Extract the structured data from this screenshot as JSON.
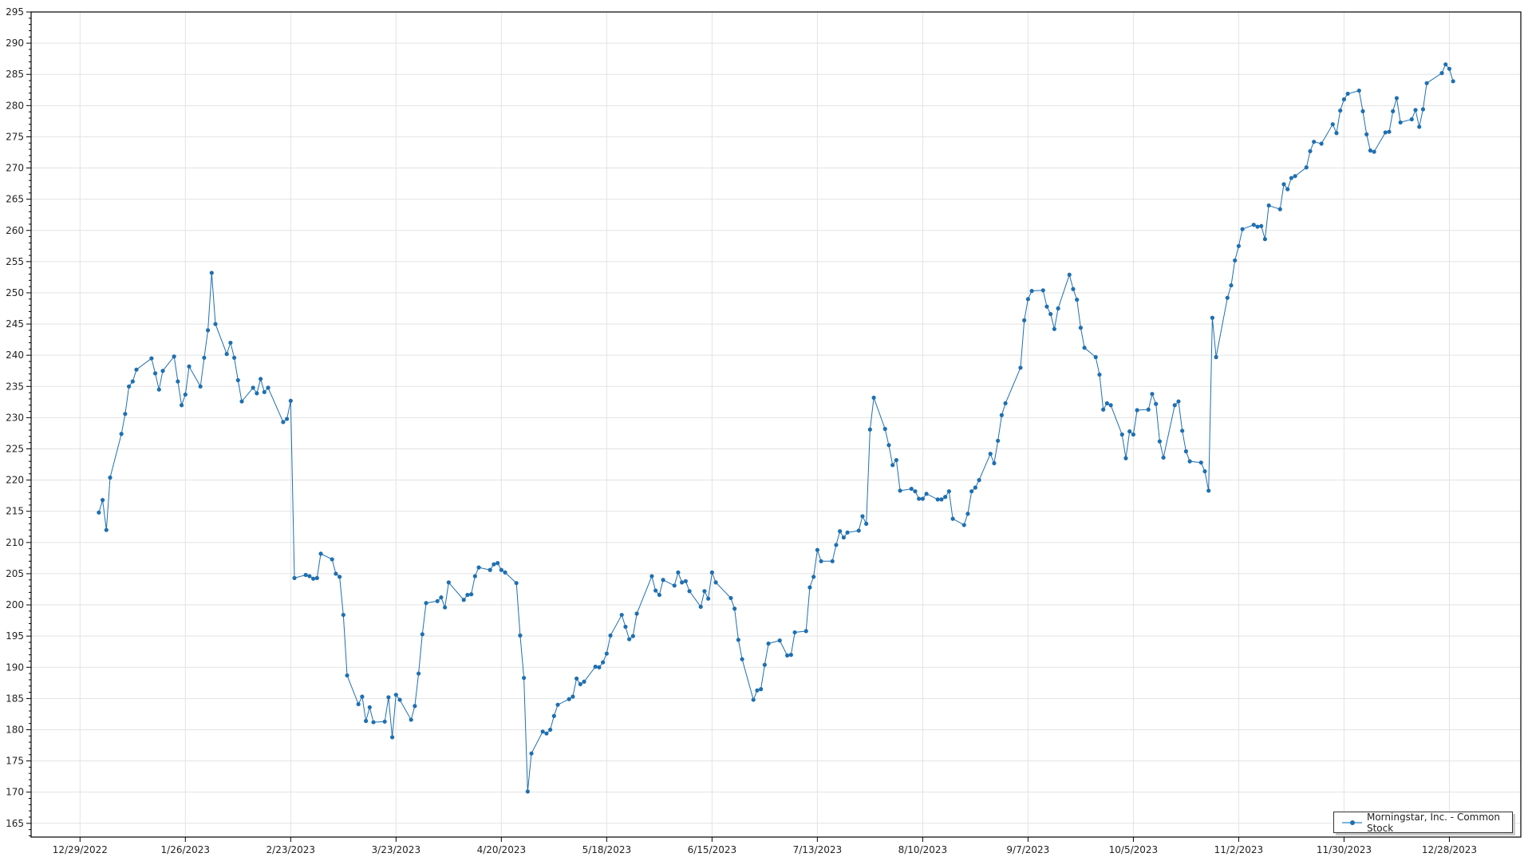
{
  "chart_data": {
    "type": "line",
    "title": "",
    "xlabel": "",
    "ylabel": "",
    "ylim": [
      162.8,
      295
    ],
    "xlim": [
      "2022-12-16",
      "2024-01-16"
    ],
    "grid": true,
    "legend_position": "bottom-right",
    "y_ticks": [
      165,
      170,
      175,
      180,
      185,
      190,
      195,
      200,
      205,
      210,
      215,
      220,
      225,
      230,
      235,
      240,
      245,
      250,
      255,
      260,
      265,
      270,
      275,
      280,
      285,
      290,
      295
    ],
    "x_ticks": [
      "2022-12-29",
      "2023-01-26",
      "2023-02-23",
      "2023-03-23",
      "2023-04-20",
      "2023-05-18",
      "2023-06-15",
      "2023-07-13",
      "2023-08-10",
      "2023-09-07",
      "2023-10-05",
      "2023-11-02",
      "2023-11-30",
      "2023-12-28"
    ],
    "x_tick_labels": [
      "12/29/2022",
      "1/26/2023",
      "2/23/2023",
      "3/23/2023",
      "4/20/2023",
      "5/18/2023",
      "6/15/2023",
      "7/13/2023",
      "8/10/2023",
      "9/7/2023",
      "10/5/2023",
      "11/2/2023",
      "11/30/2023",
      "12/28/2023"
    ],
    "series": [
      {
        "name": "Morningstar, Inc. - Common Stock",
        "color": "#1f6fb0",
        "points": [
          [
            "2023-01-03",
            214.8
          ],
          [
            "2023-01-04",
            216.8
          ],
          [
            "2023-01-05",
            212
          ],
          [
            "2023-01-06",
            220.4
          ],
          [
            "2023-01-09",
            227.4
          ],
          [
            "2023-01-10",
            230.6
          ],
          [
            "2023-01-11",
            235
          ],
          [
            "2023-01-12",
            235.8
          ],
          [
            "2023-01-13",
            237.7
          ],
          [
            "2023-01-17",
            239.5
          ],
          [
            "2023-01-18",
            237.1
          ],
          [
            "2023-01-19",
            234.5
          ],
          [
            "2023-01-20",
            237.5
          ],
          [
            "2023-01-23",
            239.8
          ],
          [
            "2023-01-24",
            235.8
          ],
          [
            "2023-01-25",
            232
          ],
          [
            "2023-01-26",
            233.7
          ],
          [
            "2023-01-27",
            238.2
          ],
          [
            "2023-01-30",
            235
          ],
          [
            "2023-01-31",
            239.6
          ],
          [
            "2023-02-01",
            244
          ],
          [
            "2023-02-02",
            253.2
          ],
          [
            "2023-02-03",
            245
          ],
          [
            "2023-02-06",
            240.2
          ],
          [
            "2023-02-07",
            242
          ],
          [
            "2023-02-08",
            239.6
          ],
          [
            "2023-02-09",
            236
          ],
          [
            "2023-02-10",
            232.6
          ],
          [
            "2023-02-13",
            234.8
          ],
          [
            "2023-02-14",
            233.9
          ],
          [
            "2023-02-15",
            236.2
          ],
          [
            "2023-02-16",
            234.1
          ],
          [
            "2023-02-17",
            234.8
          ],
          [
            "2023-02-21",
            229.3
          ],
          [
            "2023-02-22",
            229.8
          ],
          [
            "2023-02-23",
            232.7
          ],
          [
            "2023-02-24",
            204.3
          ],
          [
            "2023-02-27",
            204.8
          ],
          [
            "2023-02-28",
            204.6
          ],
          [
            "2023-03-01",
            204.2
          ],
          [
            "2023-03-02",
            204.3
          ],
          [
            "2023-03-03",
            208.2
          ],
          [
            "2023-03-06",
            207.3
          ],
          [
            "2023-03-07",
            205
          ],
          [
            "2023-03-08",
            204.5
          ],
          [
            "2023-03-09",
            198.4
          ],
          [
            "2023-03-10",
            188.7
          ],
          [
            "2023-03-13",
            184.1
          ],
          [
            "2023-03-14",
            185.3
          ],
          [
            "2023-03-15",
            181.4
          ],
          [
            "2023-03-16",
            183.6
          ],
          [
            "2023-03-17",
            181.2
          ],
          [
            "2023-03-20",
            181.3
          ],
          [
            "2023-03-21",
            185.2
          ],
          [
            "2023-03-22",
            178.8
          ],
          [
            "2023-03-23",
            185.6
          ],
          [
            "2023-03-24",
            184.8
          ],
          [
            "2023-03-27",
            181.6
          ],
          [
            "2023-03-28",
            183.8
          ],
          [
            "2023-03-29",
            189
          ],
          [
            "2023-03-30",
            195.3
          ],
          [
            "2023-03-31",
            200.3
          ],
          [
            "2023-04-03",
            200.6
          ],
          [
            "2023-04-04",
            201.2
          ],
          [
            "2023-04-05",
            199.6
          ],
          [
            "2023-04-06",
            203.6
          ],
          [
            "2023-04-10",
            200.8
          ],
          [
            "2023-04-11",
            201.6
          ],
          [
            "2023-04-12",
            201.7
          ],
          [
            "2023-04-13",
            204.6
          ],
          [
            "2023-04-14",
            206
          ],
          [
            "2023-04-17",
            205.6
          ],
          [
            "2023-04-18",
            206.5
          ],
          [
            "2023-04-19",
            206.7
          ],
          [
            "2023-04-20",
            205.6
          ],
          [
            "2023-04-21",
            205.2
          ],
          [
            "2023-04-24",
            203.5
          ],
          [
            "2023-04-25",
            195.1
          ],
          [
            "2023-04-26",
            188.3
          ],
          [
            "2023-04-27",
            170.1
          ],
          [
            "2023-04-28",
            176.2
          ],
          [
            "2023-05-01",
            179.7
          ],
          [
            "2023-05-02",
            179.4
          ],
          [
            "2023-05-03",
            180
          ],
          [
            "2023-05-04",
            182.2
          ],
          [
            "2023-05-05",
            184
          ],
          [
            "2023-05-08",
            184.9
          ],
          [
            "2023-05-09",
            185.3
          ],
          [
            "2023-05-10",
            188.2
          ],
          [
            "2023-05-11",
            187.3
          ],
          [
            "2023-05-12",
            187.7
          ],
          [
            "2023-05-15",
            190.1
          ],
          [
            "2023-05-16",
            190
          ],
          [
            "2023-05-17",
            190.8
          ],
          [
            "2023-05-18",
            192.2
          ],
          [
            "2023-05-19",
            195.1
          ],
          [
            "2023-05-22",
            198.4
          ],
          [
            "2023-05-23",
            196.5
          ],
          [
            "2023-05-24",
            194.5
          ],
          [
            "2023-05-25",
            195
          ],
          [
            "2023-05-26",
            198.6
          ],
          [
            "2023-05-30",
            204.6
          ],
          [
            "2023-05-31",
            202.3
          ],
          [
            "2023-06-01",
            201.6
          ],
          [
            "2023-06-02",
            204
          ],
          [
            "2023-06-05",
            203.1
          ],
          [
            "2023-06-06",
            205.2
          ],
          [
            "2023-06-07",
            203.6
          ],
          [
            "2023-06-08",
            203.8
          ],
          [
            "2023-06-09",
            202.2
          ],
          [
            "2023-06-12",
            199.7
          ],
          [
            "2023-06-13",
            202.2
          ],
          [
            "2023-06-14",
            201
          ],
          [
            "2023-06-15",
            205.2
          ],
          [
            "2023-06-16",
            203.6
          ],
          [
            "2023-06-20",
            201.1
          ],
          [
            "2023-06-21",
            199.4
          ],
          [
            "2023-06-22",
            194.4
          ],
          [
            "2023-06-23",
            191.3
          ],
          [
            "2023-06-26",
            184.8
          ],
          [
            "2023-06-27",
            186.3
          ],
          [
            "2023-06-28",
            186.5
          ],
          [
            "2023-06-29",
            190.4
          ],
          [
            "2023-06-30",
            193.8
          ],
          [
            "2023-07-03",
            194.3
          ],
          [
            "2023-07-05",
            191.9
          ],
          [
            "2023-07-06",
            192
          ],
          [
            "2023-07-07",
            195.6
          ],
          [
            "2023-07-10",
            195.8
          ],
          [
            "2023-07-11",
            202.8
          ],
          [
            "2023-07-12",
            204.5
          ],
          [
            "2023-07-13",
            208.8
          ],
          [
            "2023-07-14",
            207
          ],
          [
            "2023-07-17",
            207
          ],
          [
            "2023-07-18",
            209.6
          ],
          [
            "2023-07-19",
            211.8
          ],
          [
            "2023-07-20",
            210.8
          ],
          [
            "2023-07-21",
            211.6
          ],
          [
            "2023-07-24",
            211.9
          ],
          [
            "2023-07-25",
            214.2
          ],
          [
            "2023-07-26",
            213
          ],
          [
            "2023-07-27",
            228.1
          ],
          [
            "2023-07-28",
            233.2
          ],
          [
            "2023-07-31",
            228.2
          ],
          [
            "2023-08-01",
            225.6
          ],
          [
            "2023-08-02",
            222.4
          ],
          [
            "2023-08-03",
            223.2
          ],
          [
            "2023-08-04",
            218.3
          ],
          [
            "2023-08-07",
            218.6
          ],
          [
            "2023-08-08",
            218.2
          ],
          [
            "2023-08-09",
            217
          ],
          [
            "2023-08-10",
            217
          ],
          [
            "2023-08-11",
            217.8
          ],
          [
            "2023-08-14",
            216.9
          ],
          [
            "2023-08-15",
            216.9
          ],
          [
            "2023-08-16",
            217.3
          ],
          [
            "2023-08-17",
            218.2
          ],
          [
            "2023-08-18",
            213.8
          ],
          [
            "2023-08-21",
            212.8
          ],
          [
            "2023-08-22",
            214.6
          ],
          [
            "2023-08-23",
            218.2
          ],
          [
            "2023-08-24",
            218.8
          ],
          [
            "2023-08-25",
            220
          ],
          [
            "2023-08-28",
            224.2
          ],
          [
            "2023-08-29",
            222.7
          ],
          [
            "2023-08-30",
            226.3
          ],
          [
            "2023-08-31",
            230.4
          ],
          [
            "2023-09-01",
            232.3
          ],
          [
            "2023-09-05",
            238
          ],
          [
            "2023-09-06",
            245.6
          ],
          [
            "2023-09-07",
            249
          ],
          [
            "2023-09-08",
            250.3
          ],
          [
            "2023-09-11",
            250.4
          ],
          [
            "2023-09-12",
            247.8
          ],
          [
            "2023-09-13",
            246.6
          ],
          [
            "2023-09-14",
            244.2
          ],
          [
            "2023-09-15",
            247.5
          ],
          [
            "2023-09-18",
            252.9
          ],
          [
            "2023-09-19",
            250.6
          ],
          [
            "2023-09-20",
            248.9
          ],
          [
            "2023-09-21",
            244.4
          ],
          [
            "2023-09-22",
            241.2
          ],
          [
            "2023-09-25",
            239.7
          ],
          [
            "2023-09-26",
            236.9
          ],
          [
            "2023-09-27",
            231.3
          ],
          [
            "2023-09-28",
            232.3
          ],
          [
            "2023-09-29",
            232
          ],
          [
            "2023-10-02",
            227.3
          ],
          [
            "2023-10-03",
            223.5
          ],
          [
            "2023-10-04",
            227.8
          ],
          [
            "2023-10-05",
            227.3
          ],
          [
            "2023-10-06",
            231.2
          ],
          [
            "2023-10-09",
            231.3
          ],
          [
            "2023-10-10",
            233.8
          ],
          [
            "2023-10-11",
            232.2
          ],
          [
            "2023-10-12",
            226.2
          ],
          [
            "2023-10-13",
            223.6
          ],
          [
            "2023-10-16",
            232
          ],
          [
            "2023-10-17",
            232.6
          ],
          [
            "2023-10-18",
            227.9
          ],
          [
            "2023-10-19",
            224.6
          ],
          [
            "2023-10-20",
            223
          ],
          [
            "2023-10-23",
            222.8
          ],
          [
            "2023-10-24",
            221.4
          ],
          [
            "2023-10-25",
            218.3
          ],
          [
            "2023-10-26",
            246
          ],
          [
            "2023-10-27",
            239.7
          ],
          [
            "2023-10-30",
            249.2
          ],
          [
            "2023-10-31",
            251.2
          ],
          [
            "2023-11-01",
            255.2
          ],
          [
            "2023-11-02",
            257.5
          ],
          [
            "2023-11-03",
            260.2
          ],
          [
            "2023-11-06",
            260.9
          ],
          [
            "2023-11-07",
            260.6
          ],
          [
            "2023-11-08",
            260.7
          ],
          [
            "2023-11-09",
            258.6
          ],
          [
            "2023-11-10",
            264
          ],
          [
            "2023-11-13",
            263.4
          ],
          [
            "2023-11-14",
            267.4
          ],
          [
            "2023-11-15",
            266.6
          ],
          [
            "2023-11-16",
            268.4
          ],
          [
            "2023-11-17",
            268.7
          ],
          [
            "2023-11-20",
            270.1
          ],
          [
            "2023-11-21",
            272.7
          ],
          [
            "2023-11-22",
            274.2
          ],
          [
            "2023-11-24",
            273.9
          ],
          [
            "2023-11-27",
            277
          ],
          [
            "2023-11-28",
            275.6
          ],
          [
            "2023-11-29",
            279.2
          ],
          [
            "2023-11-30",
            281
          ],
          [
            "2023-12-01",
            281.9
          ],
          [
            "2023-12-04",
            282.4
          ],
          [
            "2023-12-05",
            279.1
          ],
          [
            "2023-12-06",
            275.4
          ],
          [
            "2023-12-07",
            272.8
          ],
          [
            "2023-12-08",
            272.6
          ],
          [
            "2023-12-11",
            275.7
          ],
          [
            "2023-12-12",
            275.8
          ],
          [
            "2023-12-13",
            279.1
          ],
          [
            "2023-12-14",
            281.2
          ],
          [
            "2023-12-15",
            277.3
          ],
          [
            "2023-12-18",
            277.8
          ],
          [
            "2023-12-19",
            279.3
          ],
          [
            "2023-12-20",
            276.6
          ],
          [
            "2023-12-21",
            279.4
          ],
          [
            "2023-12-22",
            283.6
          ],
          [
            "2023-12-26",
            285.2
          ],
          [
            "2023-12-27",
            286.6
          ],
          [
            "2023-12-28",
            285.9
          ],
          [
            "2023-12-29",
            283.9
          ]
        ]
      }
    ]
  },
  "legend": {
    "label": "Morningstar, Inc. - Common Stock"
  }
}
